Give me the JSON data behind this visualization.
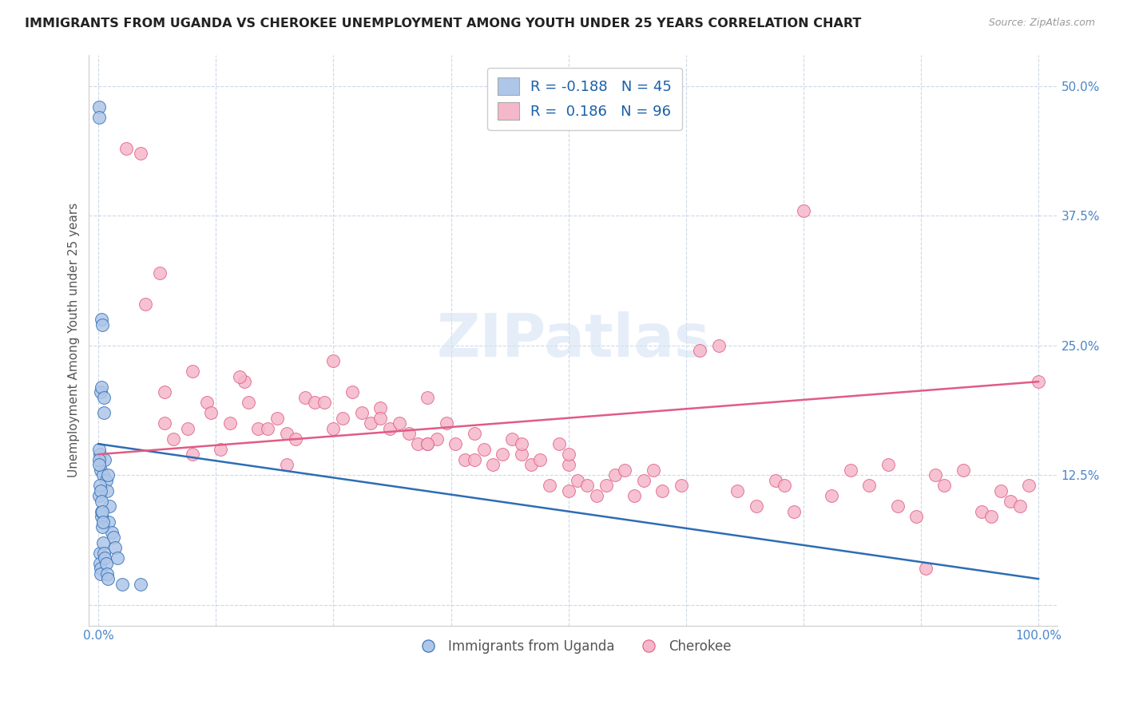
{
  "title": "IMMIGRANTS FROM UGANDA VS CHEROKEE UNEMPLOYMENT AMONG YOUTH UNDER 25 YEARS CORRELATION CHART",
  "source": "Source: ZipAtlas.com",
  "ylabel": "Unemployment Among Youth under 25 years",
  "legend_label1": "Immigrants from Uganda",
  "legend_label2": "Cherokee",
  "r1": -0.188,
  "n1": 45,
  "r2": 0.186,
  "n2": 96,
  "color_blue": "#aec6e8",
  "color_pink": "#f5b8cb",
  "line_blue": "#2e6db4",
  "line_pink": "#e05c85",
  "background": "#ffffff",
  "blue_x": [
    0.05,
    0.1,
    0.15,
    0.2,
    0.25,
    0.3,
    0.35,
    0.4,
    0.5,
    0.6,
    0.7,
    0.8,
    0.9,
    1.0,
    1.1,
    1.2,
    1.4,
    1.6,
    1.8,
    2.0,
    0.05,
    0.1,
    0.12,
    0.15,
    0.2,
    0.25,
    0.3,
    0.35,
    0.4,
    0.5,
    0.6,
    0.7,
    0.8,
    0.9,
    1.0,
    0.05,
    0.1,
    0.15,
    0.2,
    0.3,
    0.4,
    0.5,
    2.5,
    4.5,
    0.6
  ],
  "blue_y": [
    48.0,
    47.0,
    14.5,
    13.0,
    20.5,
    21.0,
    27.5,
    27.0,
    12.5,
    18.5,
    14.0,
    12.0,
    11.0,
    12.5,
    8.0,
    9.5,
    7.0,
    6.5,
    5.5,
    4.5,
    15.0,
    10.5,
    5.0,
    4.0,
    3.5,
    3.0,
    8.5,
    9.0,
    7.5,
    6.0,
    5.0,
    4.5,
    4.0,
    3.0,
    2.5,
    14.0,
    13.5,
    11.5,
    11.0,
    10.0,
    9.0,
    8.0,
    2.0,
    2.0,
    20.0
  ],
  "pink_x": [
    3.0,
    4.5,
    5.0,
    6.5,
    7.0,
    8.0,
    9.5,
    10.0,
    11.5,
    12.0,
    13.0,
    14.0,
    15.5,
    16.0,
    17.0,
    18.0,
    19.0,
    20.0,
    21.0,
    22.0,
    23.0,
    24.0,
    25.0,
    26.0,
    27.0,
    28.0,
    29.0,
    30.0,
    31.0,
    32.0,
    33.0,
    34.0,
    35.0,
    36.0,
    37.0,
    38.0,
    39.0,
    40.0,
    41.0,
    42.0,
    43.0,
    44.0,
    45.0,
    46.0,
    47.0,
    48.0,
    49.0,
    50.0,
    51.0,
    52.0,
    35.0,
    53.0,
    54.0,
    55.0,
    56.0,
    57.0,
    58.0,
    59.0,
    60.0,
    62.0,
    64.0,
    66.0,
    50.0,
    68.0,
    70.0,
    72.0,
    73.0,
    74.0,
    75.0,
    78.0,
    80.0,
    82.0,
    84.0,
    85.0,
    87.0,
    88.0,
    89.0,
    90.0,
    92.0,
    94.0,
    95.0,
    96.0,
    97.0,
    98.0,
    99.0,
    100.0,
    7.0,
    10.0,
    15.0,
    20.0,
    25.0,
    30.0,
    35.0,
    40.0,
    45.0,
    50.0
  ],
  "pink_y": [
    44.0,
    43.5,
    29.0,
    32.0,
    17.5,
    16.0,
    17.0,
    22.5,
    19.5,
    18.5,
    15.0,
    17.5,
    21.5,
    19.5,
    17.0,
    17.0,
    18.0,
    16.5,
    16.0,
    20.0,
    19.5,
    19.5,
    17.0,
    18.0,
    20.5,
    18.5,
    17.5,
    19.0,
    17.0,
    17.5,
    16.5,
    15.5,
    15.5,
    16.0,
    17.5,
    15.5,
    14.0,
    16.5,
    15.0,
    13.5,
    14.5,
    16.0,
    14.5,
    13.5,
    14.0,
    11.5,
    15.5,
    13.5,
    12.0,
    11.5,
    15.5,
    10.5,
    11.5,
    12.5,
    13.0,
    10.5,
    12.0,
    13.0,
    11.0,
    11.5,
    24.5,
    25.0,
    11.0,
    11.0,
    9.5,
    12.0,
    11.5,
    9.0,
    38.0,
    10.5,
    13.0,
    11.5,
    13.5,
    9.5,
    8.5,
    3.5,
    12.5,
    11.5,
    13.0,
    9.0,
    8.5,
    11.0,
    10.0,
    9.5,
    11.5,
    21.5,
    20.5,
    14.5,
    22.0,
    13.5,
    23.5,
    18.0,
    20.0,
    14.0,
    15.5,
    14.5
  ],
  "blue_trendline": [
    15.5,
    2.5
  ],
  "pink_trendline": [
    14.5,
    21.5
  ]
}
